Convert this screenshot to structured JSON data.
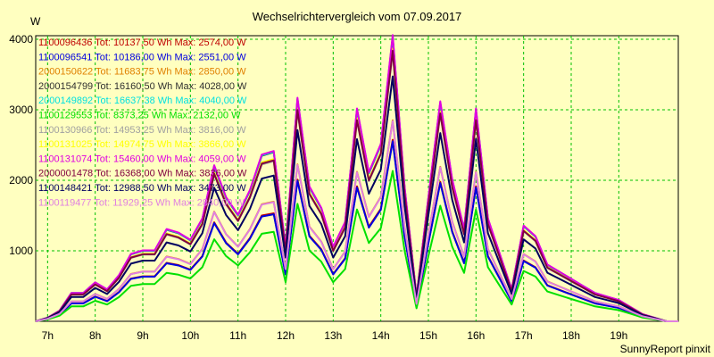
{
  "chart_data": {
    "type": "line",
    "title": "Wechselrichtervergleich vom 07.09.2017",
    "ylabel": "W",
    "footer": "SunnyReport pinxit",
    "ylim": [
      0,
      4050
    ],
    "xlim": [
      6.75,
      20.25
    ],
    "grid": true,
    "legend_placement": "top-left",
    "yticks": [
      1000,
      2000,
      3000,
      4000
    ],
    "xticks": [
      {
        "v": 7,
        "label": "7h"
      },
      {
        "v": 8,
        "label": "8h"
      },
      {
        "v": 9,
        "label": "9h"
      },
      {
        "v": 10,
        "label": "10h"
      },
      {
        "v": 11,
        "label": "11h"
      },
      {
        "v": 12,
        "label": "12h"
      },
      {
        "v": 13,
        "label": "13h"
      },
      {
        "v": 14,
        "label": "14h"
      },
      {
        "v": 15,
        "label": "15h"
      },
      {
        "v": 16,
        "label": "16h"
      },
      {
        "v": 17,
        "label": "17h"
      },
      {
        "v": 18,
        "label": "18h"
      },
      {
        "v": 19,
        "label": "19h"
      }
    ],
    "x": [
      6.75,
      7.0,
      7.25,
      7.5,
      7.75,
      8.0,
      8.25,
      8.5,
      8.75,
      9.0,
      9.25,
      9.5,
      9.75,
      10.0,
      10.25,
      10.5,
      10.75,
      11.0,
      11.25,
      11.5,
      11.75,
      12.0,
      12.25,
      12.5,
      12.75,
      13.0,
      13.25,
      13.5,
      13.75,
      14.0,
      14.25,
      14.5,
      14.75,
      15.0,
      15.25,
      15.5,
      15.75,
      16.0,
      16.25,
      16.5,
      16.75,
      17.0,
      17.25,
      17.5,
      17.75,
      18.0,
      18.25,
      18.5,
      18.75,
      19.0,
      19.25,
      19.5,
      19.75,
      20.0,
      20.25
    ],
    "shape": [
      0.0,
      0.0124,
      0.0372,
      0.0992,
      0.0992,
      0.1363,
      0.1116,
      0.1611,
      0.2355,
      0.2479,
      0.2479,
      0.3223,
      0.3099,
      0.2851,
      0.3595,
      0.5455,
      0.4339,
      0.3719,
      0.4587,
      0.5826,
      0.595,
      0.2603,
      0.781,
      0.4711,
      0.3967,
      0.2603,
      0.3471,
      0.7438,
      0.5206,
      0.6198,
      1.0,
      0.4711,
      0.0868,
      0.4339,
      0.7686,
      0.4959,
      0.3223,
      0.7438,
      0.3595,
      0.2356,
      0.1116,
      0.3347,
      0.2975,
      0.1984,
      0.1735,
      0.1487,
      0.1239,
      0.0992,
      0.0868,
      0.0744,
      0.0496,
      0.0248,
      0.0124,
      0.0,
      0.0
    ],
    "series": [
      {
        "label": "1100096436 Tot: 10137,50 Wh Max: 2574,00 W",
        "color": "#c00000",
        "peak": 2574
      },
      {
        "label": "1100096541 Tot: 10186,00 Wh Max: 2551,00 W",
        "color": "#0000e0",
        "peak": 2551
      },
      {
        "label": "2000150622 Tot: 11683,75 Wh Max: 2850,00 W",
        "color": "#e08000",
        "peak": 2850
      },
      {
        "label": "2000154799 Tot: 16160,50 Wh Max: 4028,00 W",
        "color": "#303030",
        "peak": 4028
      },
      {
        "label": "2000149892 Tot: 16637,38 Wh Max: 4040,00 W",
        "color": "#00e0e0",
        "peak": 4040
      },
      {
        "label": "1100129553 Tot: 8373,25 Wh Max: 2132,00 W",
        "color": "#00e000",
        "peak": 2132
      },
      {
        "label": "1100130966 Tot: 14953,25 Wh Max: 3816,00 W",
        "color": "#a0a0a0",
        "peak": 3816
      },
      {
        "label": "1100131025 Tot: 14974,75 Wh Max: 3866,00 W",
        "color": "#ffff00",
        "peak": 3866
      },
      {
        "label": "1100131074 Tot: 15460,00 Wh Max: 4059,00 W",
        "color": "#e000e0",
        "peak": 4059
      },
      {
        "label": "2000001478 Tot: 16368,00 Wh Max: 3836,00 W",
        "color": "#800040",
        "peak": 3836
      },
      {
        "label": "1100148421 Tot: 12988,50 Wh Max: 3473,00 W",
        "color": "#000060",
        "peak": 3473
      },
      {
        "label": "1100119477 Tot: 11929,25 Wh Max: 2840,00 W",
        "color": "#e080e0",
        "peak": 2840
      }
    ]
  }
}
